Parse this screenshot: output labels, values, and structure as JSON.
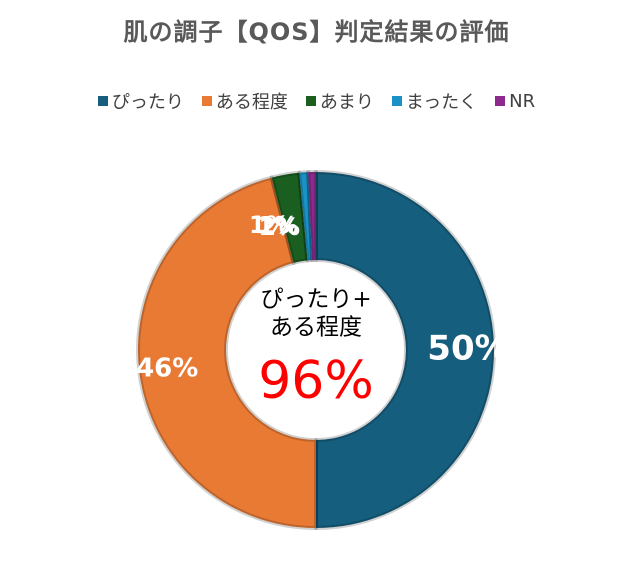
{
  "chart_data": {
    "type": "doughnut",
    "title": "肌の調子【QOS】判定結果の評価",
    "legend_position": "top",
    "series": [
      {
        "name": "ぴったり",
        "value": 50,
        "label": "50%",
        "color": "#155E7E"
      },
      {
        "name": "ある程度",
        "value": 46,
        "label": "46%",
        "color": "#E87A34"
      },
      {
        "name": "あまり",
        "value": 2.5,
        "label": "2%",
        "color": "#1A5E20"
      },
      {
        "name": "まったく",
        "value": 0.8,
        "label": "1%",
        "color": "#1A92C6"
      },
      {
        "name": "NR",
        "value": 0.7,
        "label": "1%",
        "color": "#8E2A8E"
      }
    ],
    "center_text": {
      "line1": "ぴったり+",
      "line2": "ある程度",
      "value": "96%",
      "value_color": "#FF0000"
    }
  }
}
